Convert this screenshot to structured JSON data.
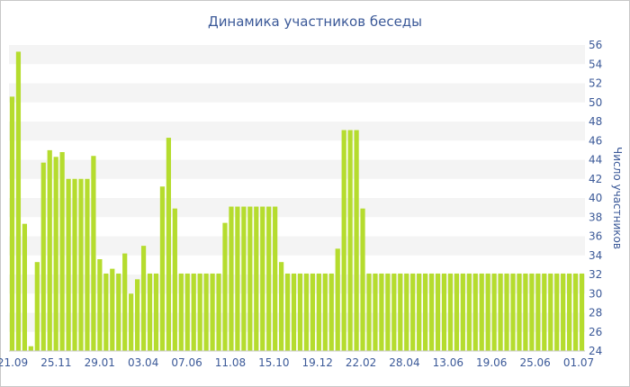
{
  "chart_data": {
    "type": "bar",
    "title": "Динамика участников беседы",
    "ylabel": "Число участников",
    "xlabel": "",
    "ylim": [
      24,
      56
    ],
    "yticks": [
      24,
      26,
      28,
      30,
      32,
      34,
      36,
      38,
      40,
      42,
      44,
      46,
      48,
      50,
      52,
      54,
      56
    ],
    "y_axis_side": "right",
    "grid": "alternating horizontal bands",
    "bar_color": "#b5dc2e",
    "band_color": "#f4f4f4",
    "text_color": "#3b5998",
    "xtick_labels": [
      "21.09",
      "25.11",
      "29.01",
      "03.04",
      "07.06",
      "11.08",
      "15.10",
      "19.12",
      "22.02",
      "28.04",
      "13.06",
      "19.06",
      "25.06",
      "01.07"
    ],
    "values": [
      50.6,
      55.3,
      37.3,
      24.5,
      33.3,
      43.7,
      45.0,
      44.3,
      44.8,
      42.0,
      42.0,
      42.0,
      42.0,
      44.4,
      33.6,
      32.1,
      32.6,
      32.1,
      34.2,
      30.0,
      31.5,
      35.0,
      32.1,
      32.1,
      41.2,
      46.3,
      38.9,
      32.1,
      32.1,
      32.1,
      32.1,
      32.1,
      32.1,
      32.1,
      37.4,
      39.1,
      39.1,
      39.1,
      39.1,
      39.1,
      39.1,
      39.1,
      39.1,
      33.3,
      32.1,
      32.1,
      32.1,
      32.1,
      32.1,
      32.1,
      32.1,
      32.1,
      34.7,
      47.1,
      47.1,
      47.1,
      38.9,
      32.1,
      32.1,
      32.1,
      32.1,
      32.1,
      32.1,
      32.1,
      32.1,
      32.1,
      32.1,
      32.1,
      32.1,
      32.1,
      32.1,
      32.1,
      32.1,
      32.1,
      32.1,
      32.1,
      32.1,
      32.1,
      32.1,
      32.1,
      32.1,
      32.1,
      32.1,
      32.1,
      32.1,
      32.1,
      32.1,
      32.1,
      32.1,
      32.1,
      32.1,
      32.1
    ]
  }
}
